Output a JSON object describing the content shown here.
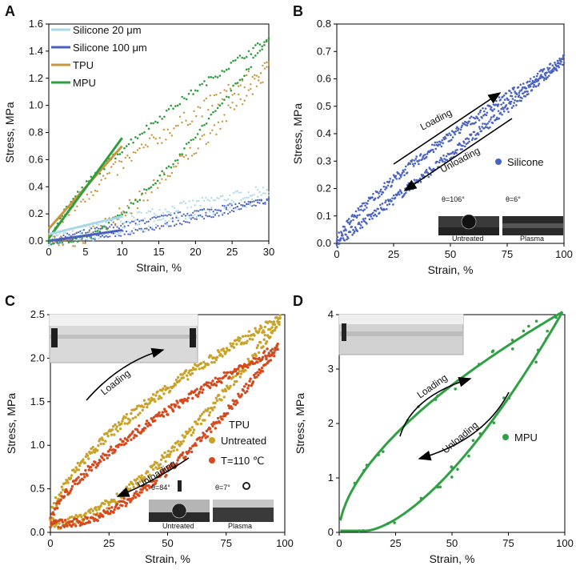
{
  "panels": {
    "A": "A",
    "B": "B",
    "C": "C",
    "D": "D"
  },
  "inset_text": {
    "b_theta1": "θ=106°",
    "b_theta2": "θ=6°",
    "b_cap1": "Untreated",
    "b_cap2": "Plasma",
    "c_theta1": "θ=84°",
    "c_theta2": "θ=7°",
    "c_cap1": "Untreated",
    "c_cap2": "Plasma"
  },
  "colors": {
    "silicone20": "#a8d8e8",
    "silicone100": "#4a5fbf",
    "tpu": "#c8963c",
    "mpu": "#2e9e3e",
    "silicone": "#4a63c0",
    "tpu_untreated": "#c9a227",
    "tpu_t110": "#d44a1e",
    "mpu_d": "#2fa043"
  },
  "chart_data": [
    {
      "panel": "A",
      "type": "scatter",
      "xlabel": "Strain, %",
      "ylabel": "Stress, MPa",
      "xlim": [
        0,
        30
      ],
      "ylim": [
        0,
        1.6
      ],
      "xticks": [
        "0",
        "5",
        "10",
        "15",
        "20",
        "25",
        "30"
      ],
      "yticks": [
        "0.0",
        "0.2",
        "0.4",
        "0.6",
        "0.8",
        "1.0",
        "1.2",
        "1.4",
        "1.6"
      ],
      "series": [
        {
          "name": "Silicone 20 μm",
          "load_end": 0.38,
          "unload_mid": 0.22,
          "start": 0
        },
        {
          "name": "Silicone 100 μm",
          "load_end": 0.3,
          "unload_mid": 0.14,
          "start": 0
        },
        {
          "name": "TPU",
          "load_end": 1.28,
          "unload_mid": 0.55,
          "start": 3
        },
        {
          "name": "MPU",
          "load_end": 1.49,
          "unload_mid": 0.62,
          "start": 4
        }
      ],
      "tangents": [
        {
          "name": "TPU",
          "x": [
            0,
            10
          ],
          "y": [
            0.09,
            0.7
          ]
        },
        {
          "name": "MPU",
          "x": [
            0,
            10
          ],
          "y": [
            0.02,
            0.76
          ]
        },
        {
          "name": "Silicone 20 μm",
          "x": [
            0,
            10
          ],
          "y": [
            0.05,
            0.18
          ]
        },
        {
          "name": "Silicone 100 μm",
          "x": [
            0,
            10
          ],
          "y": [
            0.0,
            0.08
          ]
        }
      ]
    },
    {
      "panel": "B",
      "type": "scatter",
      "xlabel": "Strain, %",
      "ylabel": "Stress, MPa",
      "xlim": [
        0,
        100
      ],
      "ylim": [
        0,
        0.8
      ],
      "xticks": [
        "0",
        "25",
        "50",
        "75",
        "100"
      ],
      "yticks": [
        "0.0",
        "0.1",
        "0.2",
        "0.3",
        "0.4",
        "0.5",
        "0.6",
        "0.7",
        "0.8"
      ],
      "series": [
        {
          "name": "Silicone",
          "max_stress": 0.67
        }
      ],
      "annotations": [
        "Loading",
        "Unloading"
      ]
    },
    {
      "panel": "C",
      "type": "scatter",
      "xlabel": "Strain, %",
      "ylabel": "Stress, MPa",
      "xlim": [
        0,
        100
      ],
      "ylim": [
        0,
        2.5
      ],
      "xticks": [
        "0",
        "25",
        "50",
        "75",
        "100"
      ],
      "yticks": [
        "0.0",
        "0.5",
        "1.0",
        "1.5",
        "2.0",
        "2.5"
      ],
      "legend_title": "TPU",
      "series": [
        {
          "name": "Untreated",
          "max_stress": 2.45,
          "min_stress": 0.1
        },
        {
          "name": "T=110 ℃",
          "max_stress": 2.12,
          "min_stress": 0.1
        }
      ],
      "annotations": [
        "Loading",
        "Unloading"
      ]
    },
    {
      "panel": "D",
      "type": "scatter",
      "xlabel": "Strain, %",
      "ylabel": "Stress, MPa",
      "xlim": [
        0,
        100
      ],
      "ylim": [
        0,
        4
      ],
      "xticks": [
        "0",
        "25",
        "50",
        "75",
        "100"
      ],
      "yticks": [
        "0",
        "1",
        "2",
        "3",
        "4"
      ],
      "series": [
        {
          "name": "MPU",
          "max_stress": 4.05,
          "residual_strain": 12
        }
      ],
      "annotations": [
        "Loading",
        "Unloading"
      ]
    }
  ]
}
